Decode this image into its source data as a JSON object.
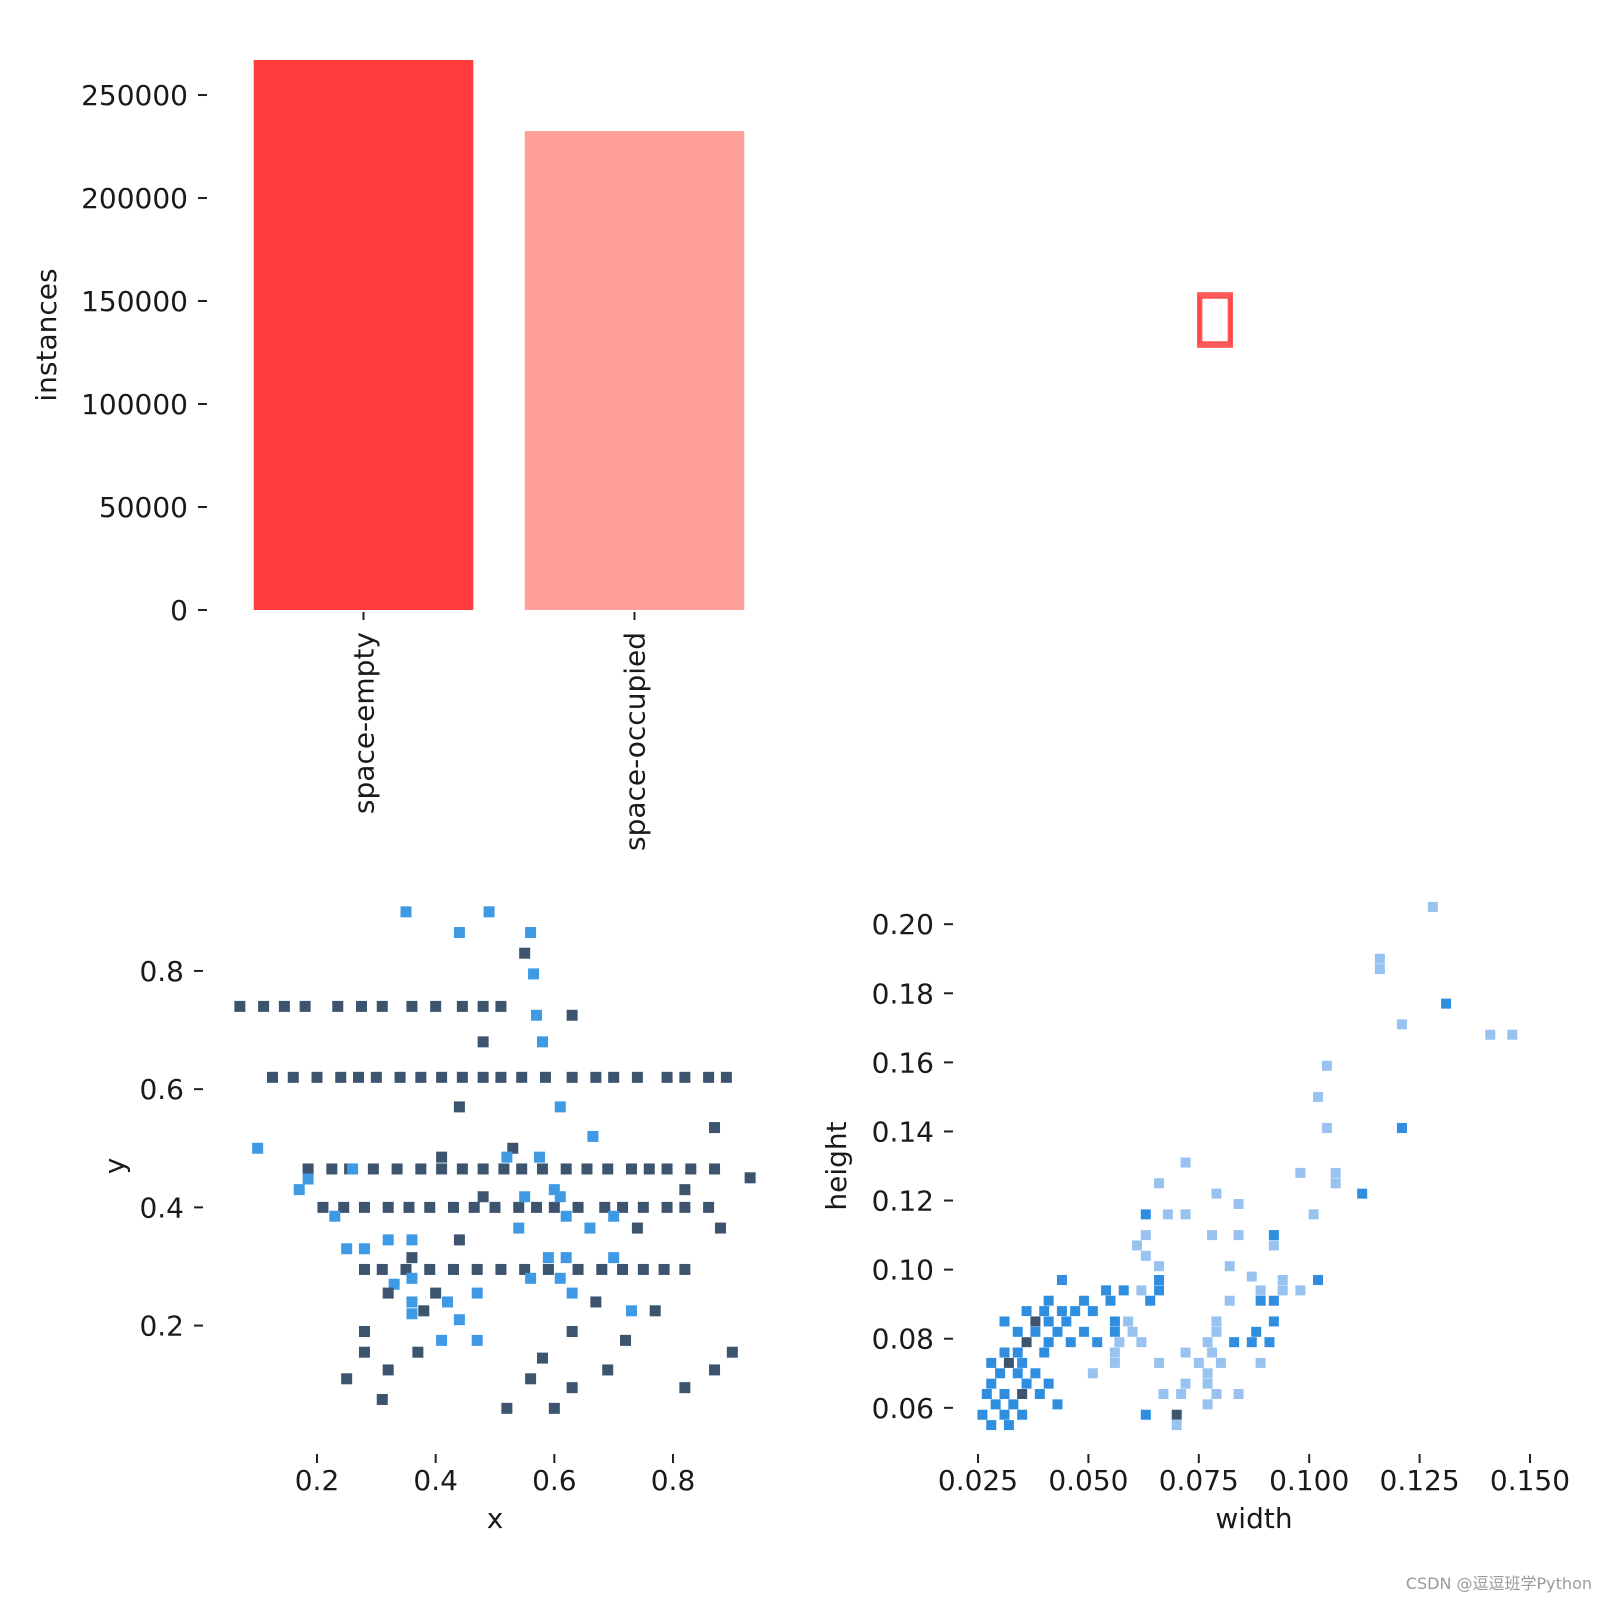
{
  "watermark": "CSDN @逗逗班学Python",
  "chart_data": [
    {
      "type": "bar",
      "categories": [
        "space-empty",
        "space-occupied"
      ],
      "values": [
        267000,
        232500
      ],
      "colors": [
        "#ff3b3b",
        "#ff9f98"
      ],
      "ylabel": "instances",
      "ylim": [
        0,
        267000
      ],
      "yticks": [
        0,
        50000,
        100000,
        150000,
        200000,
        250000
      ],
      "ytick_labels": [
        "0",
        "50000",
        "100000",
        "150000",
        "200000",
        "250000"
      ],
      "grid": false
    },
    {
      "type": "box-overlay",
      "description_color": "#ff3b3b",
      "boxes": [
        {
          "width": 0.03,
          "height": 0.08
        },
        {
          "width": 0.028,
          "height": 0.075
        },
        {
          "width": 0.026,
          "height": 0.07
        },
        {
          "width": 0.024,
          "height": 0.066
        }
      ]
    },
    {
      "type": "heatmap",
      "xlabel": "x",
      "ylabel": "y",
      "xlim": [
        0.05,
        0.95
      ],
      "ylim": [
        0.02,
        0.92
      ],
      "xticks": [
        0.2,
        0.4,
        0.6,
        0.8
      ],
      "xtick_labels": [
        "0.2",
        "0.4",
        "0.6",
        "0.8"
      ],
      "yticks": [
        0.2,
        0.4,
        0.6,
        0.8
      ],
      "ytick_labels": [
        "0.2",
        "0.4",
        "0.6",
        "0.8"
      ],
      "dark_color": "#3d546e",
      "light_color": "#3f9ae6",
      "rows": [
        {
          "y": 0.74,
          "xs": [
            0.07,
            0.11,
            0.145,
            0.18,
            0.235,
            0.275,
            0.31,
            0.36,
            0.4,
            0.445,
            0.48,
            0.51
          ],
          "c": "d"
        },
        {
          "y": 0.62,
          "xs": [
            0.125,
            0.16,
            0.2,
            0.24,
            0.27,
            0.3,
            0.34,
            0.375,
            0.41,
            0.445,
            0.48,
            0.51,
            0.545,
            0.585,
            0.63,
            0.67,
            0.7,
            0.74,
            0.79,
            0.82,
            0.86,
            0.89
          ],
          "c": "d"
        },
        {
          "y": 0.465,
          "xs": [
            0.185,
            0.225,
            0.255,
            0.295,
            0.335,
            0.375,
            0.41,
            0.445,
            0.48,
            0.515,
            0.545,
            0.58,
            0.62,
            0.655,
            0.69,
            0.73,
            0.76,
            0.79,
            0.83,
            0.87
          ],
          "c": "d"
        },
        {
          "y": 0.4,
          "xs": [
            0.21,
            0.245,
            0.28,
            0.32,
            0.355,
            0.39,
            0.43,
            0.465,
            0.5,
            0.54,
            0.57,
            0.6,
            0.64,
            0.685,
            0.715,
            0.75,
            0.79,
            0.82,
            0.86
          ],
          "c": "d"
        },
        {
          "y": 0.295,
          "xs": [
            0.28,
            0.31,
            0.35,
            0.39,
            0.43,
            0.47,
            0.51,
            0.55,
            0.59,
            0.64,
            0.68,
            0.715,
            0.75,
            0.785,
            0.82
          ],
          "c": "d"
        }
      ],
      "cells": [
        [
          0.35,
          0.9,
          "l"
        ],
        [
          0.49,
          0.9,
          "l"
        ],
        [
          0.44,
          0.865,
          "l"
        ],
        [
          0.56,
          0.865,
          "l"
        ],
        [
          0.55,
          0.83,
          "d"
        ],
        [
          0.565,
          0.795,
          "l"
        ],
        [
          0.57,
          0.725,
          "l"
        ],
        [
          0.63,
          0.725,
          "d"
        ],
        [
          0.48,
          0.68,
          "d"
        ],
        [
          0.58,
          0.68,
          "l"
        ],
        [
          0.44,
          0.57,
          "d"
        ],
        [
          0.61,
          0.57,
          "l"
        ],
        [
          0.87,
          0.535,
          "d"
        ],
        [
          0.665,
          0.52,
          "l"
        ],
        [
          0.1,
          0.5,
          "l"
        ],
        [
          0.53,
          0.5,
          "d"
        ],
        [
          0.41,
          0.485,
          "d"
        ],
        [
          0.52,
          0.485,
          "l"
        ],
        [
          0.575,
          0.485,
          "l"
        ],
        [
          0.26,
          0.465,
          "l"
        ],
        [
          0.185,
          0.448,
          "l"
        ],
        [
          0.82,
          0.43,
          "d"
        ],
        [
          0.17,
          0.43,
          "l"
        ],
        [
          0.6,
          0.43,
          "l"
        ],
        [
          0.48,
          0.418,
          "d"
        ],
        [
          0.55,
          0.418,
          "l"
        ],
        [
          0.61,
          0.418,
          "l"
        ],
        [
          0.23,
          0.385,
          "l"
        ],
        [
          0.62,
          0.385,
          "l"
        ],
        [
          0.7,
          0.385,
          "l"
        ],
        [
          0.54,
          0.365,
          "l"
        ],
        [
          0.66,
          0.365,
          "l"
        ],
        [
          0.74,
          0.365,
          "d"
        ],
        [
          0.88,
          0.365,
          "d"
        ],
        [
          0.32,
          0.345,
          "l"
        ],
        [
          0.36,
          0.345,
          "l"
        ],
        [
          0.44,
          0.345,
          "d"
        ],
        [
          0.25,
          0.33,
          "l"
        ],
        [
          0.28,
          0.33,
          "l"
        ],
        [
          0.36,
          0.315,
          "d"
        ],
        [
          0.59,
          0.315,
          "l"
        ],
        [
          0.62,
          0.315,
          "l"
        ],
        [
          0.7,
          0.315,
          "l"
        ],
        [
          0.36,
          0.28,
          "l"
        ],
        [
          0.33,
          0.27,
          "l"
        ],
        [
          0.56,
          0.28,
          "l"
        ],
        [
          0.61,
          0.28,
          "l"
        ],
        [
          0.32,
          0.255,
          "d"
        ],
        [
          0.4,
          0.255,
          "d"
        ],
        [
          0.47,
          0.255,
          "l"
        ],
        [
          0.63,
          0.255,
          "l"
        ],
        [
          0.36,
          0.24,
          "l"
        ],
        [
          0.42,
          0.24,
          "l"
        ],
        [
          0.67,
          0.24,
          "d"
        ],
        [
          0.38,
          0.225,
          "d"
        ],
        [
          0.73,
          0.225,
          "l"
        ],
        [
          0.77,
          0.225,
          "d"
        ],
        [
          0.36,
          0.22,
          "l"
        ],
        [
          0.44,
          0.21,
          "l"
        ],
        [
          0.28,
          0.19,
          "d"
        ],
        [
          0.63,
          0.19,
          "d"
        ],
        [
          0.41,
          0.175,
          "l"
        ],
        [
          0.47,
          0.175,
          "l"
        ],
        [
          0.72,
          0.175,
          "d"
        ],
        [
          0.28,
          0.155,
          "d"
        ],
        [
          0.37,
          0.155,
          "d"
        ],
        [
          0.9,
          0.155,
          "d"
        ],
        [
          0.58,
          0.145,
          "d"
        ],
        [
          0.32,
          0.125,
          "d"
        ],
        [
          0.69,
          0.125,
          "d"
        ],
        [
          0.87,
          0.125,
          "d"
        ],
        [
          0.25,
          0.11,
          "d"
        ],
        [
          0.56,
          0.11,
          "d"
        ],
        [
          0.63,
          0.095,
          "d"
        ],
        [
          0.82,
          0.095,
          "d"
        ],
        [
          0.31,
          0.075,
          "d"
        ],
        [
          0.52,
          0.06,
          "d"
        ],
        [
          0.6,
          0.06,
          "d"
        ],
        [
          0.93,
          0.45,
          "d"
        ]
      ]
    },
    {
      "type": "heatmap",
      "xlabel": "width",
      "ylabel": "height",
      "xlim": [
        0.025,
        0.15
      ],
      "ylim": [
        0.053,
        0.207
      ],
      "xticks": [
        0.025,
        0.05,
        0.075,
        0.1,
        0.125,
        0.15
      ],
      "xtick_labels": [
        "0.025",
        "0.050",
        "0.075",
        "0.100",
        "0.125",
        "0.150"
      ],
      "yticks": [
        0.06,
        0.08,
        0.1,
        0.12,
        0.14,
        0.16,
        0.18,
        0.2
      ],
      "ytick_labels": [
        "0.06",
        "0.08",
        "0.10",
        "0.12",
        "0.14",
        "0.16",
        "0.18",
        "0.20"
      ],
      "dark_color": "#3d546e",
      "mid_color": "#2f8ee0",
      "light_color": "#8dbdf0",
      "cells": [
        [
          0.128,
          0.205,
          "l"
        ],
        [
          0.116,
          0.19,
          "l"
        ],
        [
          0.116,
          0.187,
          "l"
        ],
        [
          0.131,
          0.177,
          "m"
        ],
        [
          0.121,
          0.171,
          "l"
        ],
        [
          0.141,
          0.168,
          "l"
        ],
        [
          0.146,
          0.168,
          "l"
        ],
        [
          0.104,
          0.159,
          "l"
        ],
        [
          0.102,
          0.15,
          "l"
        ],
        [
          0.104,
          0.141,
          "l"
        ],
        [
          0.121,
          0.141,
          "m"
        ],
        [
          0.072,
          0.131,
          "l"
        ],
        [
          0.098,
          0.128,
          "l"
        ],
        [
          0.106,
          0.128,
          "l"
        ],
        [
          0.066,
          0.125,
          "l"
        ],
        [
          0.106,
          0.125,
          "l"
        ],
        [
          0.079,
          0.122,
          "l"
        ],
        [
          0.112,
          0.122,
          "m"
        ],
        [
          0.084,
          0.119,
          "l"
        ],
        [
          0.063,
          0.116,
          "m"
        ],
        [
          0.068,
          0.116,
          "l"
        ],
        [
          0.072,
          0.116,
          "l"
        ],
        [
          0.101,
          0.116,
          "l"
        ],
        [
          0.063,
          0.11,
          "l"
        ],
        [
          0.078,
          0.11,
          "l"
        ],
        [
          0.084,
          0.11,
          "l"
        ],
        [
          0.092,
          0.11,
          "m"
        ],
        [
          0.061,
          0.107,
          "l"
        ],
        [
          0.092,
          0.107,
          "l"
        ],
        [
          0.063,
          0.104,
          "l"
        ],
        [
          0.066,
          0.101,
          "l"
        ],
        [
          0.082,
          0.101,
          "l"
        ],
        [
          0.087,
          0.098,
          "l"
        ],
        [
          0.044,
          0.097,
          "m"
        ],
        [
          0.066,
          0.097,
          "m"
        ],
        [
          0.094,
          0.097,
          "l"
        ],
        [
          0.102,
          0.097,
          "m"
        ],
        [
          0.054,
          0.094,
          "m"
        ],
        [
          0.058,
          0.094,
          "m"
        ],
        [
          0.062,
          0.094,
          "l"
        ],
        [
          0.066,
          0.094,
          "m"
        ],
        [
          0.089,
          0.094,
          "l"
        ],
        [
          0.094,
          0.094,
          "l"
        ],
        [
          0.098,
          0.094,
          "l"
        ],
        [
          0.041,
          0.091,
          "m"
        ],
        [
          0.049,
          0.091,
          "m"
        ],
        [
          0.055,
          0.091,
          "m"
        ],
        [
          0.064,
          0.091,
          "m"
        ],
        [
          0.082,
          0.091,
          "l"
        ],
        [
          0.089,
          0.091,
          "m"
        ],
        [
          0.092,
          0.091,
          "m"
        ],
        [
          0.036,
          0.088,
          "m"
        ],
        [
          0.04,
          0.088,
          "m"
        ],
        [
          0.044,
          0.088,
          "m"
        ],
        [
          0.047,
          0.088,
          "m"
        ],
        [
          0.051,
          0.088,
          "m"
        ],
        [
          0.056,
          0.085,
          "m"
        ],
        [
          0.059,
          0.085,
          "l"
        ],
        [
          0.079,
          0.085,
          "l"
        ],
        [
          0.092,
          0.085,
          "m"
        ],
        [
          0.031,
          0.085,
          "m"
        ],
        [
          0.038,
          0.085,
          "d"
        ],
        [
          0.041,
          0.085,
          "m"
        ],
        [
          0.045,
          0.085,
          "m"
        ],
        [
          0.034,
          0.082,
          "m"
        ],
        [
          0.038,
          0.082,
          "m"
        ],
        [
          0.043,
          0.082,
          "m"
        ],
        [
          0.049,
          0.082,
          "m"
        ],
        [
          0.056,
          0.082,
          "m"
        ],
        [
          0.06,
          0.082,
          "l"
        ],
        [
          0.079,
          0.082,
          "l"
        ],
        [
          0.088,
          0.082,
          "m"
        ],
        [
          0.036,
          0.079,
          "d"
        ],
        [
          0.041,
          0.079,
          "m"
        ],
        [
          0.046,
          0.079,
          "m"
        ],
        [
          0.052,
          0.079,
          "m"
        ],
        [
          0.057,
          0.079,
          "l"
        ],
        [
          0.062,
          0.079,
          "l"
        ],
        [
          0.077,
          0.079,
          "l"
        ],
        [
          0.083,
          0.079,
          "m"
        ],
        [
          0.087,
          0.079,
          "m"
        ],
        [
          0.091,
          0.079,
          "m"
        ],
        [
          0.031,
          0.076,
          "m"
        ],
        [
          0.034,
          0.076,
          "m"
        ],
        [
          0.04,
          0.076,
          "m"
        ],
        [
          0.056,
          0.076,
          "l"
        ],
        [
          0.072,
          0.076,
          "l"
        ],
        [
          0.078,
          0.076,
          "l"
        ],
        [
          0.028,
          0.073,
          "m"
        ],
        [
          0.032,
          0.073,
          "d"
        ],
        [
          0.035,
          0.073,
          "m"
        ],
        [
          0.056,
          0.073,
          "l"
        ],
        [
          0.066,
          0.073,
          "l"
        ],
        [
          0.075,
          0.073,
          "l"
        ],
        [
          0.08,
          0.073,
          "l"
        ],
        [
          0.089,
          0.073,
          "l"
        ],
        [
          0.03,
          0.07,
          "m"
        ],
        [
          0.034,
          0.07,
          "m"
        ],
        [
          0.038,
          0.07,
          "m"
        ],
        [
          0.051,
          0.07,
          "l"
        ],
        [
          0.077,
          0.07,
          "l"
        ],
        [
          0.028,
          0.067,
          "m"
        ],
        [
          0.036,
          0.067,
          "m"
        ],
        [
          0.041,
          0.067,
          "m"
        ],
        [
          0.072,
          0.067,
          "l"
        ],
        [
          0.077,
          0.067,
          "l"
        ],
        [
          0.027,
          0.064,
          "m"
        ],
        [
          0.031,
          0.064,
          "m"
        ],
        [
          0.035,
          0.064,
          "d"
        ],
        [
          0.039,
          0.064,
          "m"
        ],
        [
          0.067,
          0.064,
          "l"
        ],
        [
          0.071,
          0.064,
          "l"
        ],
        [
          0.079,
          0.064,
          "l"
        ],
        [
          0.084,
          0.064,
          "l"
        ],
        [
          0.029,
          0.061,
          "m"
        ],
        [
          0.033,
          0.061,
          "m"
        ],
        [
          0.043,
          0.061,
          "m"
        ],
        [
          0.077,
          0.061,
          "l"
        ],
        [
          0.026,
          0.058,
          "m"
        ],
        [
          0.031,
          0.058,
          "m"
        ],
        [
          0.035,
          0.058,
          "m"
        ],
        [
          0.063,
          0.058,
          "m"
        ],
        [
          0.07,
          0.058,
          "d"
        ],
        [
          0.028,
          0.055,
          "m"
        ],
        [
          0.032,
          0.055,
          "m"
        ],
        [
          0.07,
          0.055,
          "l"
        ]
      ]
    }
  ]
}
